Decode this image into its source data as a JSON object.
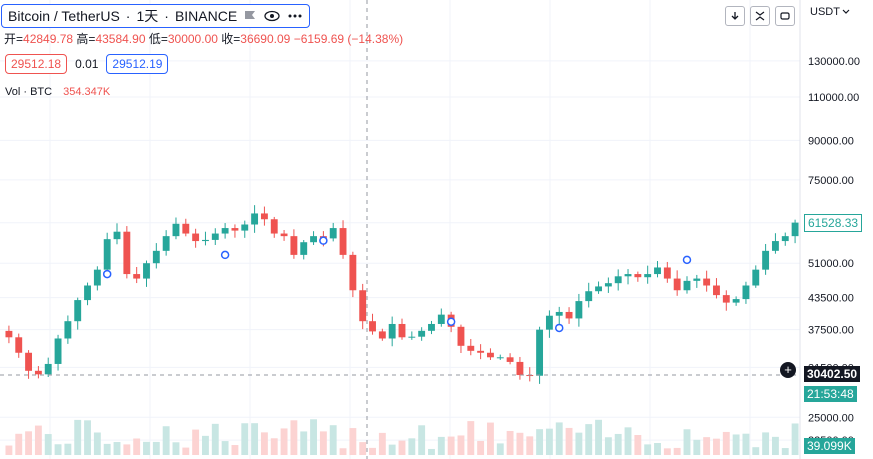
{
  "header": {
    "symbol": "Bitcoin / TetherUS",
    "sep1": "·",
    "interval": "1天",
    "sep2": "·",
    "exchange": "BINANCE",
    "flag_icon": "flag-icon",
    "eye_icon": "eye-icon",
    "more_icon": "more-icon"
  },
  "ohlc": {
    "open_label": "开=",
    "open": "42849.78",
    "high_label": "高=",
    "high": "43584.90",
    "low_label": "低=",
    "low": "30000.00",
    "close_label": "收=",
    "close": "36690.09",
    "change": "−6159.69",
    "change_pct": "(−14.38%)"
  },
  "trade": {
    "sell_price": "29512.18",
    "spread": "0.01",
    "buy_price": "29512.19"
  },
  "volume": {
    "label": "Vol · BTC",
    "value": "354.347K"
  },
  "toolbar": {
    "currency": "USDT",
    "buttons": [
      "arrow-down-icon",
      "expand-icon",
      "screenshot-icon"
    ]
  },
  "colors": {
    "up": "#26a69a",
    "down": "#ef5350",
    "up_volume": "#c8e6e3",
    "down_volume": "#fcd3d2",
    "grid": "#f0f3fa",
    "crosshair": "#9598a1",
    "marker_stroke": "#2962ff"
  },
  "chart_data": {
    "type": "candlestick",
    "y_axis": {
      "scale": "log",
      "ticks": [
        22500,
        25000,
        31500,
        37500,
        43500,
        51000,
        61500,
        75000,
        90000,
        110000,
        130000
      ],
      "tick_labels": [
        "22500.00",
        "25000.00",
        "31500.00",
        "37500.00",
        "43500.00",
        "51000.00",
        "61500.00",
        "75000.00",
        "90000.00",
        "110000.00",
        "130000.00"
      ],
      "ylim": [
        21000,
        150000
      ]
    },
    "close_series": [
      36200,
      33700,
      31000,
      30500,
      32000,
      36000,
      39000,
      43000,
      46000,
      49500,
      57000,
      59000,
      48500,
      47500,
      51000,
      54000,
      57800,
      61200,
      58500,
      56500,
      56800,
      58500,
      60000,
      59300,
      61000,
      64200,
      62500,
      58500,
      57800,
      53000,
      56200,
      57800,
      57200,
      60000,
      53000,
      45000,
      39000,
      37200,
      36000,
      38500,
      36200,
      36300,
      37300,
      38500,
      40200,
      38000,
      34800,
      34000,
      33700,
      33000,
      33000,
      32300,
      30400,
      30300,
      37500,
      40000,
      40700,
      39500,
      42800,
      44800,
      45800,
      46500,
      48000,
      48500,
      47800,
      48500,
      50000,
      47500,
      45000,
      47000,
      47500,
      46000,
      44000,
      42500,
      43200,
      46000,
      49500,
      54000,
      56500,
      57800,
      61528
    ],
    "current_price": "61528.33",
    "crosshair_price": "30402.50",
    "countdown": "21:53:48",
    "volume_tag": "39.099K",
    "markers": [
      {
        "index": 10,
        "price": 48500
      },
      {
        "index": 22,
        "price": 53000
      },
      {
        "index": 32,
        "price": 56600
      },
      {
        "index": 45,
        "price": 38900
      },
      {
        "index": 56,
        "price": 37800
      },
      {
        "index": 69,
        "price": 51800
      }
    ]
  }
}
